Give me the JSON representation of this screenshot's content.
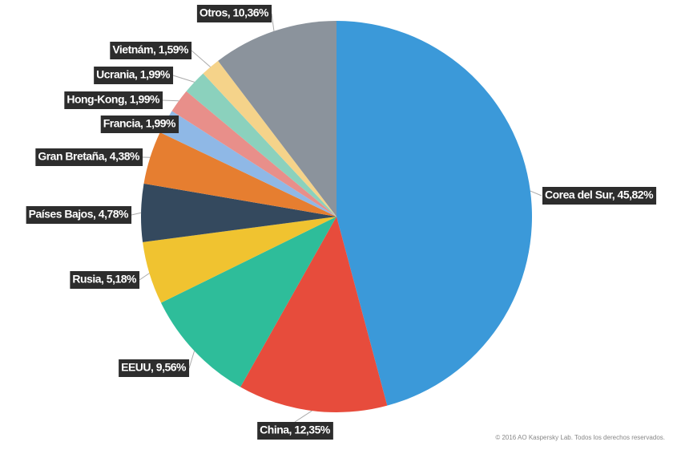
{
  "chart_data": {
    "type": "pie",
    "footnote": "© 2016 AO Kaspersky Lab. Todos los derechos reservados.",
    "values": [
      45.82,
      12.35,
      9.56,
      5.18,
      4.78,
      4.38,
      1.99,
      1.99,
      1.99,
      1.59,
      10.36
    ],
    "value_labels": [
      "Corea del Sur, 45,82%",
      "China, 12,35%",
      "EEUU, 9,56%",
      "Rusia, 5,18%",
      "Países Bajos, 4,78%",
      "Gran Bretaña, 4,38%",
      "Francia, 1,99%",
      "Hong-Kong, 1,99%",
      "Ucrania, 1,99%",
      "Vietnám, 1,59%",
      "Otros, 10,36%"
    ],
    "colors": [
      "#3b99d9",
      "#e74c3c",
      "#2ebd9a",
      "#f0c330",
      "#34495e",
      "#e67e30",
      "#8fb8e6",
      "#e88f8a",
      "#8bd1bd",
      "#f5d38a",
      "#8b939c"
    ]
  }
}
